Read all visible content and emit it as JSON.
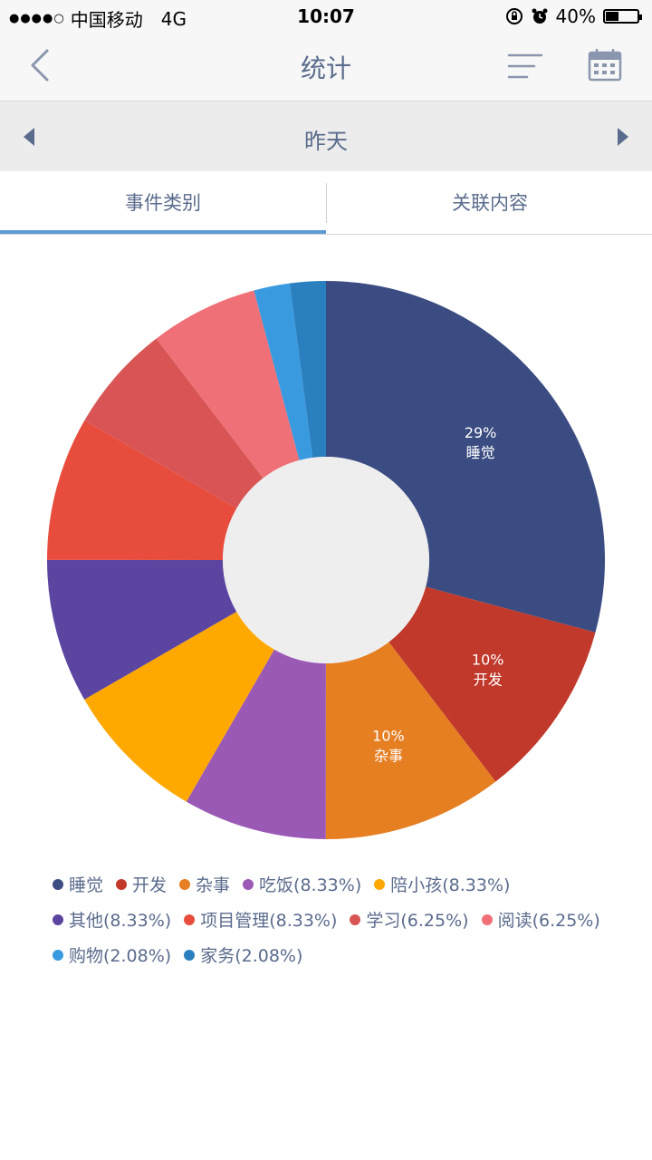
{
  "status_bar": {
    "carrier": "中国移动",
    "network": "4G",
    "time": "10:07",
    "battery_text": "40%",
    "battery_level": 0.4
  },
  "header": {
    "title": "统计",
    "back_icon": "chevron-left-icon",
    "filter_icon": "filter-lines-icon",
    "calendar_icon": "calendar-icon"
  },
  "date_nav": {
    "label": "昨天",
    "prev_icon": "triangle-left-icon",
    "next_icon": "triangle-right-icon"
  },
  "tabs": [
    {
      "label": "事件类别",
      "active": true
    },
    {
      "label": "关联内容",
      "active": false
    }
  ],
  "colors": {
    "accent": "#5a9bd5",
    "text": "#5a6b8c",
    "center": "#eeeeee"
  },
  "chart_data": {
    "type": "pie",
    "donut": true,
    "series": [
      {
        "name": "睡觉",
        "value": 29.17,
        "color": "#3b4c82",
        "slice_label": "29%",
        "legend": "睡觉"
      },
      {
        "name": "开发",
        "value": 10.42,
        "color": "#c0392b",
        "slice_label": "10%",
        "legend": "开发"
      },
      {
        "name": "杂事",
        "value": 10.42,
        "color": "#e67e22",
        "slice_label": "10%",
        "legend": "杂事"
      },
      {
        "name": "吃饭",
        "value": 8.33,
        "color": "#9b59b6",
        "slice_label": "",
        "legend": "吃饭(8.33%)"
      },
      {
        "name": "陪小孩",
        "value": 8.33,
        "color": "#ffa800",
        "slice_label": "",
        "legend": "陪小孩(8.33%)"
      },
      {
        "name": "其他",
        "value": 8.33,
        "color": "#5c45a0",
        "slice_label": "",
        "legend": "其他(8.33%)"
      },
      {
        "name": "项目管理",
        "value": 8.33,
        "color": "#e74c3c",
        "slice_label": "",
        "legend": "项目管理(8.33%)"
      },
      {
        "name": "学习",
        "value": 6.25,
        "color": "#d95555",
        "slice_label": "",
        "legend": "学习(6.25%)"
      },
      {
        "name": "阅读",
        "value": 6.25,
        "color": "#ef7076",
        "slice_label": "",
        "legend": "阅读(6.25%)"
      },
      {
        "name": "购物",
        "value": 2.08,
        "color": "#3a9ae0",
        "slice_label": "",
        "legend": "购物(2.08%)"
      },
      {
        "name": "家务",
        "value": 2.08,
        "color": "#2a80be",
        "slice_label": "",
        "legend": "家务(2.08%)"
      }
    ]
  }
}
